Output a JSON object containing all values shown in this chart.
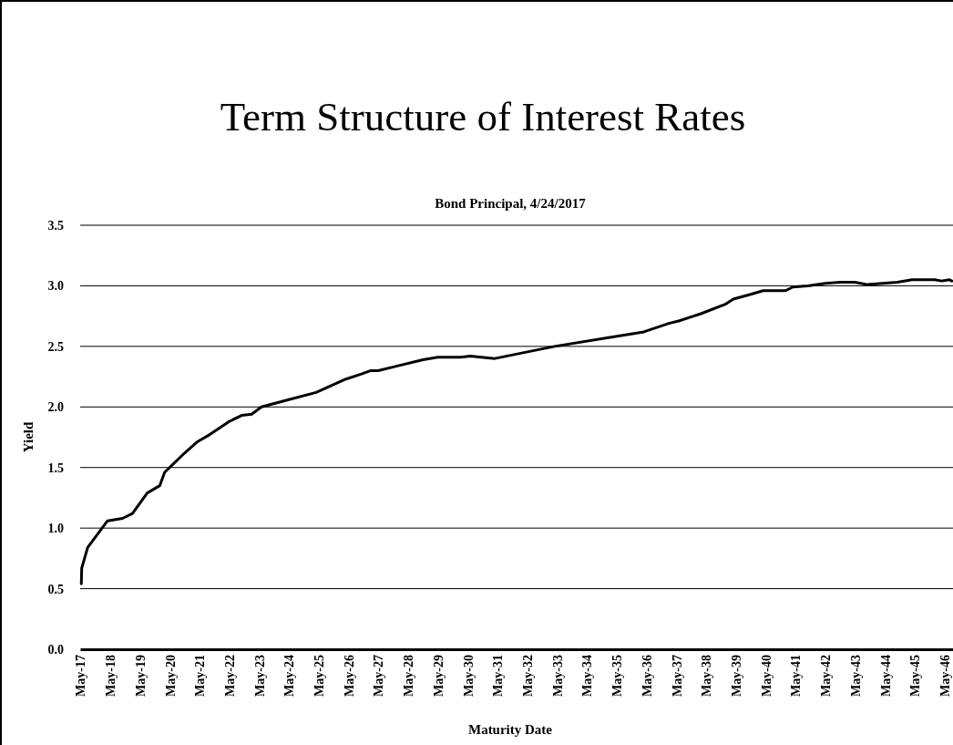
{
  "chart_data": {
    "type": "line",
    "title": "Term Structure of Interest Rates",
    "subtitle": "Bond Principal, 4/24/2017",
    "xlabel": "Maturity Date",
    "ylabel": "Yield",
    "x": [
      "2017-05-15",
      "2017-05-20",
      "2017-08",
      "2018-04",
      "2018-10",
      "2019-02",
      "2019-08",
      "2020-01",
      "2020-03",
      "2020-11",
      "2021-04",
      "2021-09",
      "2022-05",
      "2022-10",
      "2023-02",
      "2023-06",
      "2024-05",
      "2025-04",
      "2026-04",
      "2026-10",
      "2027-02",
      "2027-05",
      "2028-01",
      "2028-11",
      "2029-05",
      "2030-02",
      "2030-06",
      "2031-04",
      "2033-04",
      "2035-04",
      "2036-04",
      "2037-02",
      "2037-06",
      "2038-03",
      "2039-01",
      "2039-04",
      "2039-11",
      "2040-04",
      "2041-01",
      "2041-04",
      "2041-10",
      "2042-05",
      "2042-11",
      "2043-05",
      "2043-10",
      "2044-04",
      "2044-10",
      "2045-04",
      "2046-01",
      "2046-04",
      "2046-07",
      "2046-08"
    ],
    "series": [
      {
        "color": "#000000",
        "values": [
          0.54,
          0.67,
          0.84,
          1.06,
          1.08,
          1.12,
          1.29,
          1.35,
          1.46,
          1.62,
          1.71,
          1.77,
          1.88,
          1.93,
          1.94,
          2.0,
          2.06,
          2.12,
          2.23,
          2.27,
          2.3,
          2.3,
          2.34,
          2.39,
          2.41,
          2.41,
          2.42,
          2.4,
          2.5,
          2.58,
          2.62,
          2.69,
          2.71,
          2.77,
          2.85,
          2.89,
          2.93,
          2.96,
          2.96,
          2.99,
          3.0,
          3.02,
          3.03,
          3.03,
          3.01,
          3.02,
          3.03,
          3.05,
          3.05,
          3.04,
          3.05,
          3.04
        ]
      }
    ],
    "xlim": [
      "2017-05-01",
      "2046-08-15"
    ],
    "xticks": [
      {
        "value": "2017-05",
        "label": "May-17"
      },
      {
        "value": "2018-05",
        "label": "May-18"
      },
      {
        "value": "2019-05",
        "label": "May-19"
      },
      {
        "value": "2020-05",
        "label": "May-20"
      },
      {
        "value": "2021-05",
        "label": "May-21"
      },
      {
        "value": "2022-05",
        "label": "May-22"
      },
      {
        "value": "2023-05",
        "label": "May-23"
      },
      {
        "value": "2024-05",
        "label": "May-24"
      },
      {
        "value": "2025-05",
        "label": "May-25"
      },
      {
        "value": "2026-05",
        "label": "May-26"
      },
      {
        "value": "2027-05",
        "label": "May-27"
      },
      {
        "value": "2028-05",
        "label": "May-28"
      },
      {
        "value": "2029-05",
        "label": "May-29"
      },
      {
        "value": "2030-05",
        "label": "May-30"
      },
      {
        "value": "2031-05",
        "label": "May-31"
      },
      {
        "value": "2032-05",
        "label": "May-32"
      },
      {
        "value": "2033-05",
        "label": "May-33"
      },
      {
        "value": "2034-05",
        "label": "May-34"
      },
      {
        "value": "2035-05",
        "label": "May-35"
      },
      {
        "value": "2036-05",
        "label": "May-36"
      },
      {
        "value": "2037-05",
        "label": "May-37"
      },
      {
        "value": "2038-05",
        "label": "May-38"
      },
      {
        "value": "2039-05",
        "label": "May-39"
      },
      {
        "value": "2040-05",
        "label": "May-40"
      },
      {
        "value": "2041-05",
        "label": "May-41"
      },
      {
        "value": "2042-05",
        "label": "May-42"
      },
      {
        "value": "2043-05",
        "label": "May-43"
      },
      {
        "value": "2044-05",
        "label": "May-44"
      },
      {
        "value": "2045-05",
        "label": "May-45"
      },
      {
        "value": "2046-05",
        "label": "May-46"
      }
    ],
    "ylim": [
      0,
      3.5
    ],
    "yticks": [
      {
        "value": 0,
        "label": "0.0"
      },
      {
        "value": 0.5,
        "label": "0.5"
      },
      {
        "value": 1,
        "label": "1.0"
      },
      {
        "value": 1.5,
        "label": "1.5"
      },
      {
        "value": 2,
        "label": "2.0"
      },
      {
        "value": 2.5,
        "label": "2.5"
      },
      {
        "value": 3,
        "label": "3.0"
      },
      {
        "value": 3.5,
        "label": "3.5"
      }
    ],
    "grid": "y",
    "marker": "none",
    "line_style": "solid"
  }
}
